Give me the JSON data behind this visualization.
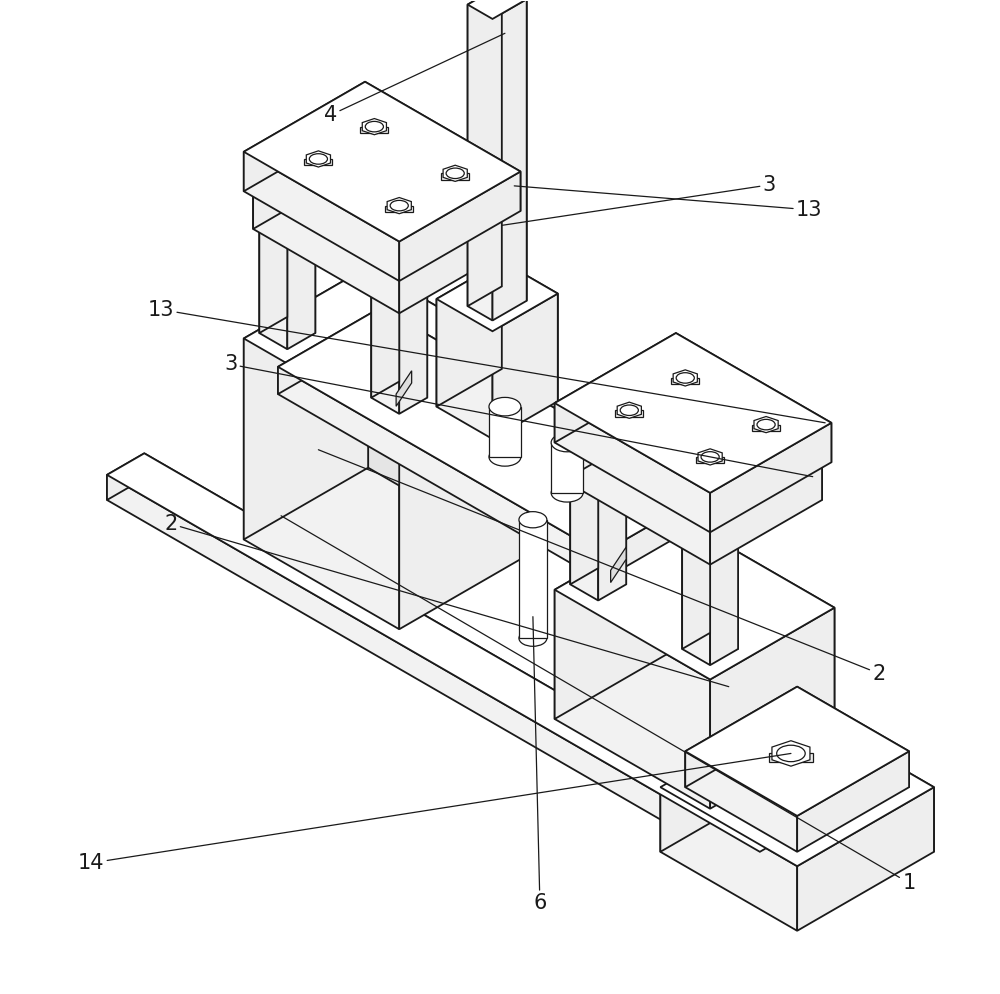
{
  "background_color": "#ffffff",
  "line_color": "#1a1a1a",
  "line_width": 1.3,
  "lw_thin": 0.9,
  "label_fontsize": 15,
  "face_top": "#ffffff",
  "face_left": "#f2f2f2",
  "face_right": "#e5e5e5",
  "face_front": "#eeeeee"
}
